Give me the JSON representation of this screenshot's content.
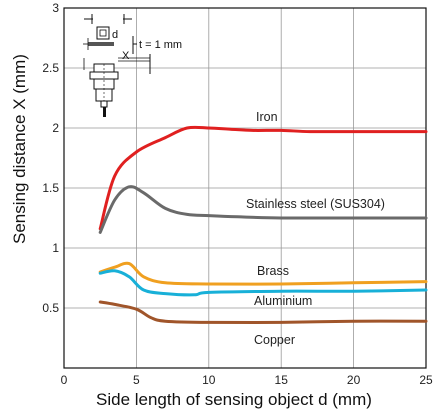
{
  "chart_data": {
    "type": "line",
    "title": "",
    "xlabel": "Side length of sensing object d (mm)",
    "ylabel": "Sensing distance X (mm)",
    "xlim": [
      0,
      25
    ],
    "ylim": [
      0,
      3
    ],
    "xticks": [
      "0",
      "5",
      "10",
      "15",
      "20",
      "25"
    ],
    "yticks": [
      "0.5",
      "1",
      "1.5",
      "2",
      "2.5",
      "3"
    ],
    "grid": true,
    "series": [
      {
        "name": "Iron",
        "color": "#e02020",
        "points": [
          [
            2.5,
            1.16
          ],
          [
            3.5,
            1.6
          ],
          [
            5,
            1.8
          ],
          [
            7,
            1.92
          ],
          [
            8.5,
            2.0
          ],
          [
            10,
            2.0
          ],
          [
            11.5,
            1.99
          ],
          [
            13,
            1.98
          ],
          [
            15,
            1.98
          ],
          [
            17,
            1.97
          ],
          [
            20,
            1.97
          ],
          [
            25,
            1.97
          ]
        ]
      },
      {
        "name": "Stainless steel (SUS304)",
        "color": "#6a6a6a",
        "points": [
          [
            2.5,
            1.13
          ],
          [
            3.5,
            1.4
          ],
          [
            4.5,
            1.51
          ],
          [
            5.5,
            1.46
          ],
          [
            7,
            1.33
          ],
          [
            8.5,
            1.28
          ],
          [
            10,
            1.27
          ],
          [
            12,
            1.26
          ],
          [
            15,
            1.25
          ],
          [
            20,
            1.25
          ],
          [
            25,
            1.25
          ]
        ]
      },
      {
        "name": "Brass",
        "color": "#f0a020",
        "points": [
          [
            2.5,
            0.8
          ],
          [
            3.5,
            0.84
          ],
          [
            4.5,
            0.87
          ],
          [
            5.5,
            0.76
          ],
          [
            7,
            0.71
          ],
          [
            10,
            0.7
          ],
          [
            15,
            0.7
          ],
          [
            20,
            0.71
          ],
          [
            25,
            0.72
          ]
        ]
      },
      {
        "name": "Aluminium",
        "color": "#18b0d8",
        "points": [
          [
            2.5,
            0.79
          ],
          [
            3.5,
            0.81
          ],
          [
            4.5,
            0.76
          ],
          [
            5.5,
            0.65
          ],
          [
            7,
            0.62
          ],
          [
            9,
            0.61
          ],
          [
            10,
            0.63
          ],
          [
            15,
            0.64
          ],
          [
            20,
            0.64
          ],
          [
            25,
            0.65
          ]
        ]
      },
      {
        "name": "Copper",
        "color": "#a0552a",
        "points": [
          [
            2.5,
            0.55
          ],
          [
            3.5,
            0.53
          ],
          [
            5,
            0.49
          ],
          [
            6,
            0.42
          ],
          [
            7,
            0.39
          ],
          [
            10,
            0.38
          ],
          [
            15,
            0.38
          ],
          [
            20,
            0.39
          ],
          [
            25,
            0.39
          ]
        ]
      }
    ]
  },
  "inset": {
    "d_label": "d",
    "t_label": "t = 1 mm",
    "x_label": "X"
  }
}
